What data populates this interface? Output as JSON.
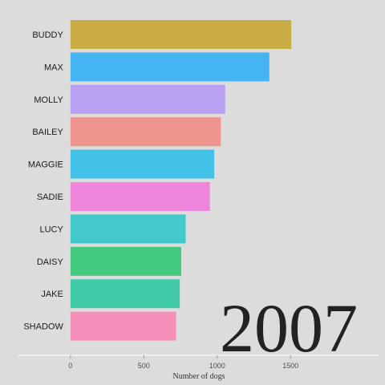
{
  "chart_data": {
    "type": "bar",
    "orientation": "horizontal",
    "categories": [
      "BUDDY",
      "MAX",
      "MOLLY",
      "BAILEY",
      "MAGGIE",
      "SADIE",
      "LUCY",
      "DAISY",
      "JAKE",
      "SHADOW"
    ],
    "values": [
      1505,
      1355,
      1055,
      1025,
      980,
      950,
      785,
      755,
      745,
      720
    ],
    "colors": [
      "#c9ac45",
      "#44b4f3",
      "#b8a1f0",
      "#ef9590",
      "#43c2e9",
      "#ef86db",
      "#41c9cb",
      "#43c97e",
      "#41cba8",
      "#f48fba"
    ],
    "xlabel": "Number of dogs",
    "ylabel": "",
    "xlim": [
      -360,
      2100
    ],
    "xticks": [
      0,
      500,
      1000,
      1500
    ],
    "annotation": "2007",
    "grid": false,
    "background": "#dcdcdc"
  }
}
